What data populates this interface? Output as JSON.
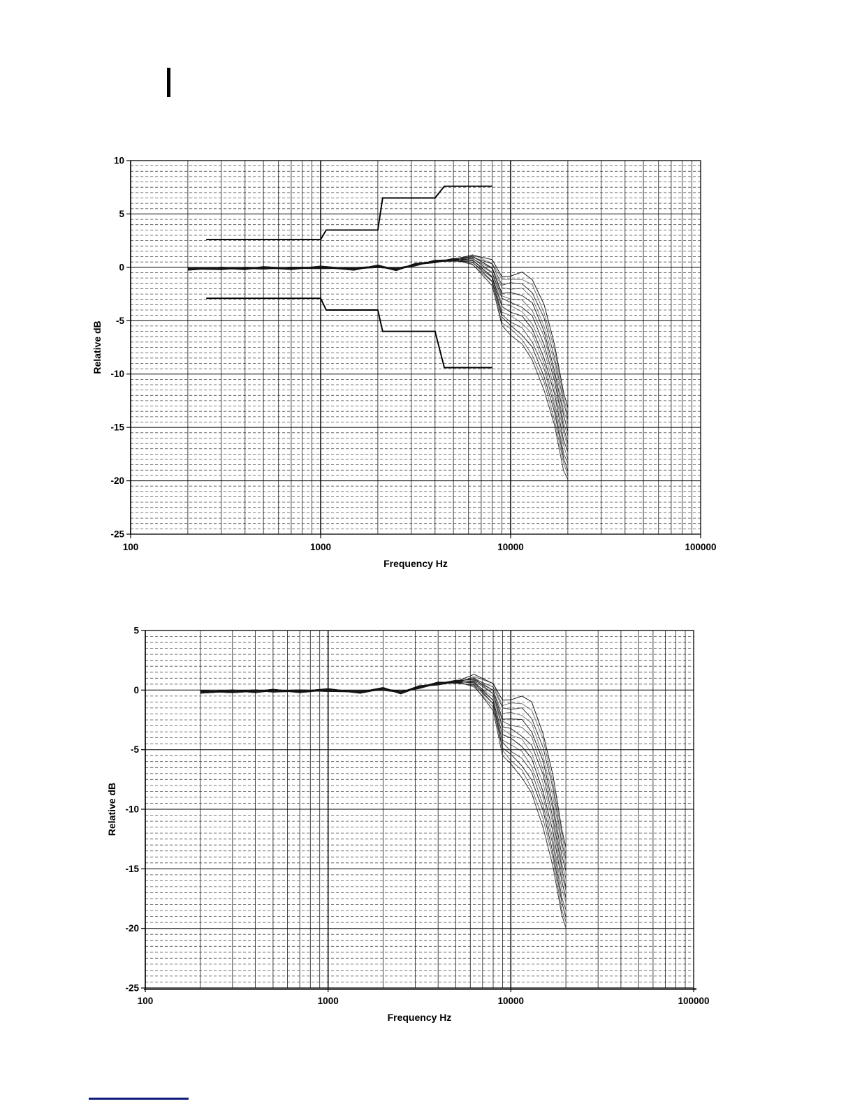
{
  "page": {
    "background": "#ffffff",
    "cursor_mark_color": "#000000",
    "footnote_rule_color": "#0e1b78"
  },
  "chart_data": [
    {
      "type": "line",
      "name": "frequency-response-with-tolerance-limits",
      "title": "",
      "xlabel": "Frequency Hz",
      "ylabel": "Relative dB",
      "x_scale": "log",
      "xlim": [
        100,
        100000
      ],
      "ylim": [
        -25,
        10
      ],
      "x_ticks": [
        100,
        1000,
        10000,
        100000
      ],
      "x_tick_labels": [
        "100",
        "1000",
        "10000",
        "100000"
      ],
      "y_major_ticks": [
        10,
        5,
        0,
        -5,
        -10,
        -15,
        -20,
        -25
      ],
      "y_minor_step": 0.5,
      "grid": "vertical solid log minors 2-9 per decade; horizontal dashed 0.5 dB minors, solid 5 dB majors",
      "legend": "none",
      "tolerance_upper": [
        [
          250,
          2.6
        ],
        [
          1000,
          2.6
        ],
        [
          1070,
          3.5
        ],
        [
          2000,
          3.5
        ],
        [
          2120,
          6.5
        ],
        [
          4000,
          6.5
        ],
        [
          4480,
          7.6
        ],
        [
          8000,
          7.6
        ]
      ],
      "tolerance_lower": [
        [
          250,
          -2.9
        ],
        [
          1000,
          -2.9
        ],
        [
          1070,
          -4.0
        ],
        [
          2000,
          -4.0
        ],
        [
          2120,
          -6.0
        ],
        [
          4000,
          -6.0
        ],
        [
          4480,
          -9.4
        ],
        [
          8000,
          -9.4
        ]
      ],
      "frequencies": [
        200,
        300,
        400,
        500,
        700,
        1000,
        1500,
        2000,
        2500,
        3150,
        4000,
        5000,
        6300,
        8000,
        9000,
        10000,
        11500,
        13000,
        15000,
        17000,
        19000,
        20000
      ],
      "series": [
        {
          "name": "trace-01",
          "values": [
            -0.27,
            -0.04,
            -0.16,
            0.07,
            -0.1,
            -0.12,
            -0.09,
            0.04,
            -0.08,
            0.25,
            0.43,
            0.76,
            1.14,
            0.72,
            -0.9,
            -0.82,
            -0.44,
            -1.16,
            -3.48,
            -7.2,
            -11.72,
            -13.14
          ]
        },
        {
          "name": "trace-02",
          "values": [
            -0.15,
            -0.22,
            -0.04,
            -0.11,
            0.02,
            0.0,
            -0.27,
            0.16,
            -0.26,
            0.37,
            0.55,
            0.58,
            1.19,
            0.37,
            -1.13,
            -1.13,
            -1.14,
            -1.62,
            -4.26,
            -7.66,
            -12.17,
            -13.84
          ]
        },
        {
          "name": "trace-03",
          "values": [
            -0.03,
            -0.1,
            -0.22,
            0.01,
            -0.16,
            0.12,
            -0.15,
            -0.02,
            -0.14,
            0.19,
            0.67,
            0.7,
            0.94,
            0.32,
            -1.67,
            -1.44,
            -1.55,
            -2.39,
            -4.74,
            -8.43,
            -12.62,
            -14.25
          ]
        },
        {
          "name": "trace-04",
          "values": [
            -0.21,
            0.02,
            -0.1,
            -0.17,
            -0.04,
            -0.06,
            -0.03,
            0.1,
            -0.32,
            0.31,
            0.49,
            0.82,
            0.99,
            -0.03,
            -1.9,
            -2.05,
            -1.95,
            -2.85,
            -5.52,
            -8.89,
            -13.37,
            -14.65
          ]
        },
        {
          "name": "trace-05",
          "values": [
            -0.09,
            -0.16,
            0.02,
            -0.05,
            -0.22,
            0.06,
            -0.21,
            0.22,
            -0.2,
            0.13,
            0.61,
            0.64,
            1.04,
            -0.08,
            -2.44,
            -2.36,
            -2.65,
            -3.32,
            -6.0,
            -9.66,
            -13.82,
            -15.35
          ]
        },
        {
          "name": "trace-06",
          "values": [
            -0.27,
            -0.04,
            -0.16,
            0.07,
            -0.1,
            -0.12,
            -0.09,
            0.04,
            -0.08,
            0.25,
            0.43,
            0.76,
            0.79,
            -0.13,
            -2.67,
            -2.97,
            -3.06,
            -4.08,
            -6.48,
            -10.12,
            -14.57,
            -15.76
          ]
        },
        {
          "name": "trace-07",
          "values": [
            -0.15,
            -0.22,
            -0.04,
            -0.11,
            0.02,
            0.0,
            -0.27,
            0.16,
            -0.26,
            0.37,
            0.55,
            0.58,
            0.84,
            -0.48,
            -2.9,
            -3.28,
            -3.76,
            -4.55,
            -7.26,
            -10.59,
            -15.02,
            -16.46
          ]
        },
        {
          "name": "trace-08",
          "values": [
            -0.03,
            -0.1,
            -0.22,
            0.01,
            -0.16,
            0.12,
            -0.15,
            -0.02,
            -0.14,
            0.19,
            0.67,
            0.7,
            0.6,
            -0.52,
            -3.44,
            -3.6,
            -4.16,
            -5.31,
            -7.74,
            -11.35,
            -15.46,
            -16.86
          ]
        },
        {
          "name": "trace-09",
          "values": [
            -0.21,
            0.02,
            -0.1,
            -0.17,
            -0.04,
            -0.06,
            -0.03,
            0.1,
            -0.32,
            0.31,
            0.49,
            0.82,
            0.65,
            -0.87,
            -3.67,
            -4.21,
            -4.56,
            -5.78,
            -8.52,
            -11.82,
            -16.21,
            -17.26
          ]
        },
        {
          "name": "trace-10",
          "values": [
            -0.09,
            -0.16,
            0.02,
            -0.05,
            -0.22,
            0.06,
            -0.21,
            0.22,
            -0.2,
            0.13,
            0.61,
            0.64,
            0.7,
            -0.92,
            -4.2,
            -4.52,
            -5.27,
            -6.24,
            -9.0,
            -12.58,
            -16.66,
            -17.97
          ]
        },
        {
          "name": "trace-11",
          "values": [
            -0.27,
            -0.04,
            -0.16,
            0.07,
            -0.1,
            -0.12,
            -0.09,
            0.04,
            -0.08,
            0.25,
            0.43,
            0.76,
            0.45,
            -0.97,
            -4.44,
            -5.13,
            -5.67,
            -7.01,
            -9.48,
            -13.05,
            -17.41,
            -18.37
          ]
        },
        {
          "name": "trace-12",
          "values": [
            -0.15,
            -0.22,
            -0.04,
            -0.11,
            0.02,
            0.0,
            -0.27,
            0.16,
            -0.26,
            0.37,
            0.55,
            0.58,
            0.5,
            -1.32,
            -4.67,
            -5.44,
            -6.37,
            -7.47,
            -10.26,
            -13.51,
            -17.86,
            -19.07
          ]
        },
        {
          "name": "trace-13",
          "values": [
            -0.03,
            -0.1,
            -0.22,
            0.01,
            -0.16,
            0.12,
            -0.15,
            -0.02,
            -0.14,
            0.19,
            0.67,
            0.7,
            0.25,
            -1.37,
            -5.21,
            -5.75,
            -6.78,
            -8.24,
            -10.74,
            -14.28,
            -18.31,
            -19.48
          ]
        },
        {
          "name": "trace-14",
          "values": [
            -0.21,
            0.02,
            -0.1,
            -0.17,
            -0.04,
            -0.06,
            -0.03,
            0.1,
            -0.32,
            0.31,
            0.49,
            0.82,
            0.3,
            -1.72,
            -5.44,
            -6.36,
            -7.18,
            -8.7,
            -11.52,
            -14.74,
            -19.06,
            -19.88
          ]
        }
      ]
    },
    {
      "type": "line",
      "name": "frequency-response-normalized",
      "title": "",
      "xlabel": "Frequency Hz",
      "ylabel": "Relative dB",
      "x_scale": "log",
      "xlim": [
        100,
        100000
      ],
      "ylim": [
        -25,
        5
      ],
      "x_ticks": [
        100,
        1000,
        10000,
        100000
      ],
      "x_tick_labels": [
        "100",
        "1000",
        "10000",
        "100000"
      ],
      "y_major_ticks": [
        5,
        0,
        -5,
        -10,
        -15,
        -20,
        -25
      ],
      "y_minor_step": 0.5,
      "grid": "vertical solid log minors 2-9 per decade; horizontal dashed 0.5 dB minors, solid 5 dB majors",
      "legend": "none",
      "heavy_baseline": true,
      "frequencies": [
        200,
        300,
        400,
        500,
        700,
        1000,
        1500,
        2000,
        2500,
        3150,
        4000,
        5000,
        6300,
        8000,
        9000,
        10000,
        11500,
        13000,
        15000,
        17000,
        19000,
        20000
      ],
      "series": [
        {
          "name": "trace-01",
          "values": [
            -0.27,
            -0.1,
            0.02,
            -0.11,
            -0.04,
            -0.12,
            -0.15,
            0.22,
            -0.26,
            0.31,
            0.43,
            0.7,
            1.32,
            0.54,
            -0.84,
            -0.82,
            -0.5,
            -0.98,
            -3.66,
            -7.14,
            -11.72,
            -13.2
          ]
        },
        {
          "name": "trace-02",
          "values": [
            -0.09,
            -0.22,
            -0.1,
            0.07,
            -0.16,
            0.06,
            -0.27,
            0.1,
            -0.08,
            0.19,
            0.61,
            0.58,
            1.13,
            0.55,
            -1.31,
            -1.07,
            -1.14,
            -1.68,
            -4.08,
            -7.84,
            -12.11,
            -13.84
          ]
        },
        {
          "name": "trace-03",
          "values": [
            -0.21,
            -0.04,
            -0.22,
            -0.05,
            0.02,
            -0.06,
            -0.09,
            -0.02,
            -0.2,
            0.37,
            0.49,
            0.76,
            0.94,
            0.26,
            -1.49,
            -1.62,
            -1.49,
            -2.39,
            -4.8,
            -8.25,
            -12.8,
            -14.19
          ]
        },
        {
          "name": "trace-04",
          "values": [
            -0.03,
            -0.16,
            -0.04,
            -0.17,
            -0.1,
            0.12,
            -0.21,
            0.16,
            -0.32,
            0.25,
            0.67,
            0.64,
            1.05,
            -0.03,
            -1.96,
            -1.87,
            -2.13,
            -2.79,
            -5.52,
            -8.95,
            -13.19,
            -14.83
          ]
        },
        {
          "name": "trace-05",
          "values": [
            -0.15,
            0.02,
            -0.16,
            0.01,
            -0.22,
            0.0,
            -0.03,
            0.04,
            -0.14,
            0.13,
            0.55,
            0.82,
            0.86,
            -0.02,
            -2.44,
            -2.42,
            -2.47,
            -3.5,
            -5.94,
            -9.66,
            -13.88,
            -15.17
          ]
        },
        {
          "name": "trace-06",
          "values": [
            -0.27,
            -0.1,
            0.02,
            -0.11,
            -0.04,
            -0.12,
            -0.15,
            0.22,
            -0.26,
            0.31,
            0.43,
            0.7,
            0.97,
            -0.31,
            -2.61,
            -2.97,
            -3.12,
            -3.9,
            -6.66,
            -10.06,
            -14.57,
            -15.82
          ]
        },
        {
          "name": "trace-07",
          "values": [
            -0.09,
            -0.22,
            -0.1,
            0.07,
            -0.16,
            0.06,
            -0.27,
            0.1,
            -0.08,
            0.19,
            0.61,
            0.58,
            0.78,
            -0.3,
            -3.08,
            -3.22,
            -3.88,
            -4.61,
            -7.08,
            -10.77,
            -14.96,
            -16.58
          ]
        },
        {
          "name": "trace-08",
          "values": [
            -0.21,
            -0.04,
            -0.22,
            -0.05,
            0.02,
            -0.06,
            -0.09,
            -0.02,
            -0.2,
            0.37,
            0.49,
            0.76,
            0.6,
            -0.58,
            -3.26,
            -3.78,
            -4.1,
            -5.31,
            -7.8,
            -11.23,
            -15.52,
            -16.8
          ]
        },
        {
          "name": "trace-09",
          "values": [
            -0.03,
            -0.16,
            -0.04,
            -0.17,
            -0.1,
            0.12,
            -0.21,
            0.16,
            -0.32,
            0.25,
            0.67,
            0.64,
            0.71,
            -0.87,
            -3.73,
            -4.03,
            -4.74,
            -5.72,
            -8.52,
            -11.88,
            -16.03,
            -17.44
          ]
        },
        {
          "name": "trace-10",
          "values": [
            -0.15,
            0.02,
            -0.16,
            0.01,
            -0.22,
            0.0,
            -0.03,
            0.04,
            -0.14,
            0.13,
            0.55,
            0.82,
            0.52,
            -0.86,
            -4.2,
            -4.58,
            -5.15,
            -6.42,
            -8.94,
            -12.58,
            -16.72,
            -17.79
          ]
        },
        {
          "name": "trace-11",
          "values": [
            -0.27,
            -0.1,
            0.02,
            -0.11,
            -0.04,
            -0.12,
            -0.15,
            0.22,
            -0.26,
            0.31,
            0.43,
            0.7,
            0.63,
            -1.15,
            -4.38,
            -5.13,
            -5.73,
            -6.83,
            -9.66,
            -12.99,
            -17.41,
            -18.43
          ]
        },
        {
          "name": "trace-12",
          "values": [
            -0.09,
            -0.22,
            -0.1,
            0.07,
            -0.16,
            0.06,
            -0.27,
            0.1,
            -0.08,
            0.19,
            0.61,
            0.58,
            0.44,
            -1.14,
            -4.85,
            -5.38,
            -6.37,
            -7.53,
            -10.08,
            -13.69,
            -17.8,
            -19.07
          ]
        },
        {
          "name": "trace-13",
          "values": [
            -0.21,
            -0.04,
            -0.22,
            -0.05,
            0.02,
            -0.06,
            -0.09,
            -0.02,
            -0.2,
            0.37,
            0.49,
            0.76,
            0.25,
            -1.43,
            -5.03,
            -5.93,
            -6.72,
            -8.24,
            -10.8,
            -14.1,
            -18.49,
            -19.42
          ]
        },
        {
          "name": "trace-14",
          "values": [
            -0.03,
            -0.16,
            -0.04,
            -0.17,
            -0.1,
            0.12,
            -0.21,
            0.16,
            -0.32,
            0.25,
            0.67,
            0.64,
            0.36,
            -1.72,
            -5.5,
            -6.18,
            -7.36,
            -8.64,
            -11.52,
            -14.8,
            -18.88,
            -19.94
          ]
        }
      ]
    }
  ]
}
